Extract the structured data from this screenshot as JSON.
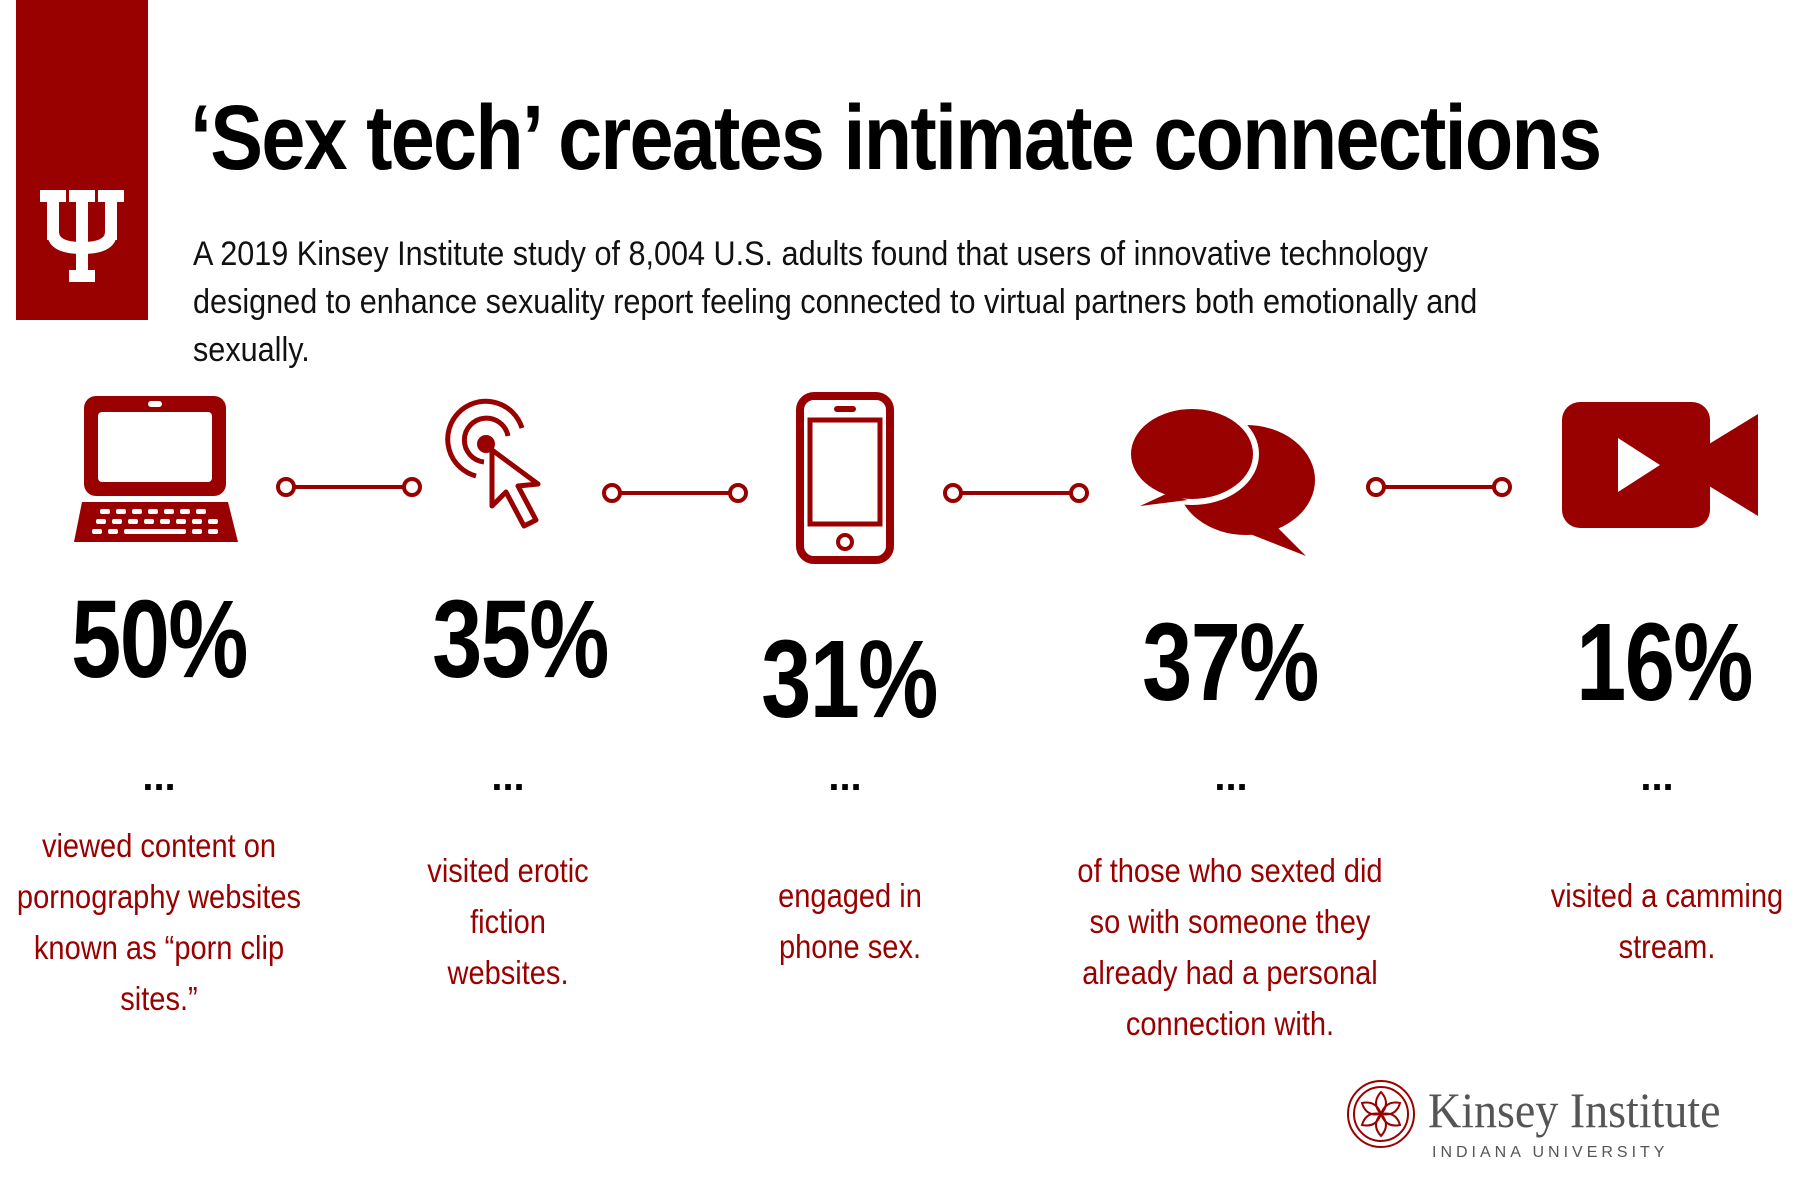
{
  "header": {
    "title": "‘Sex tech’ creates intimate connections",
    "subtitle": "A 2019 Kinsey Institute study of 8,004 U.S. adults found that users of innovative technology designed to enhance sexuality report feeling connected to virtual partners both emotionally and sexually."
  },
  "colors": {
    "accent": "#990000",
    "text": "#000000",
    "logo_gray": "#555555"
  },
  "chart_data": {
    "type": "table",
    "unit": "%",
    "items": [
      {
        "value": 50,
        "label": "50%",
        "icon": "laptop-icon",
        "description": "viewed content on pornography websites known as “porn clip sites.”"
      },
      {
        "value": 35,
        "label": "35%",
        "icon": "cursor-click-icon",
        "description": "visited erotic fiction websites."
      },
      {
        "value": 31,
        "label": "31%",
        "icon": "smartphone-icon",
        "description": "engaged in phone sex."
      },
      {
        "value": 37,
        "label": "37%",
        "icon": "speech-bubbles-icon",
        "description": "of those who sexted did so with someone they already had a personal connection with."
      },
      {
        "value": 16,
        "label": "16%",
        "icon": "video-camera-icon",
        "description": "visited a camming stream."
      }
    ],
    "separator": "..."
  },
  "footer": {
    "institute": "Kinsey Institute",
    "university": "INDIANA UNIVERSITY"
  }
}
